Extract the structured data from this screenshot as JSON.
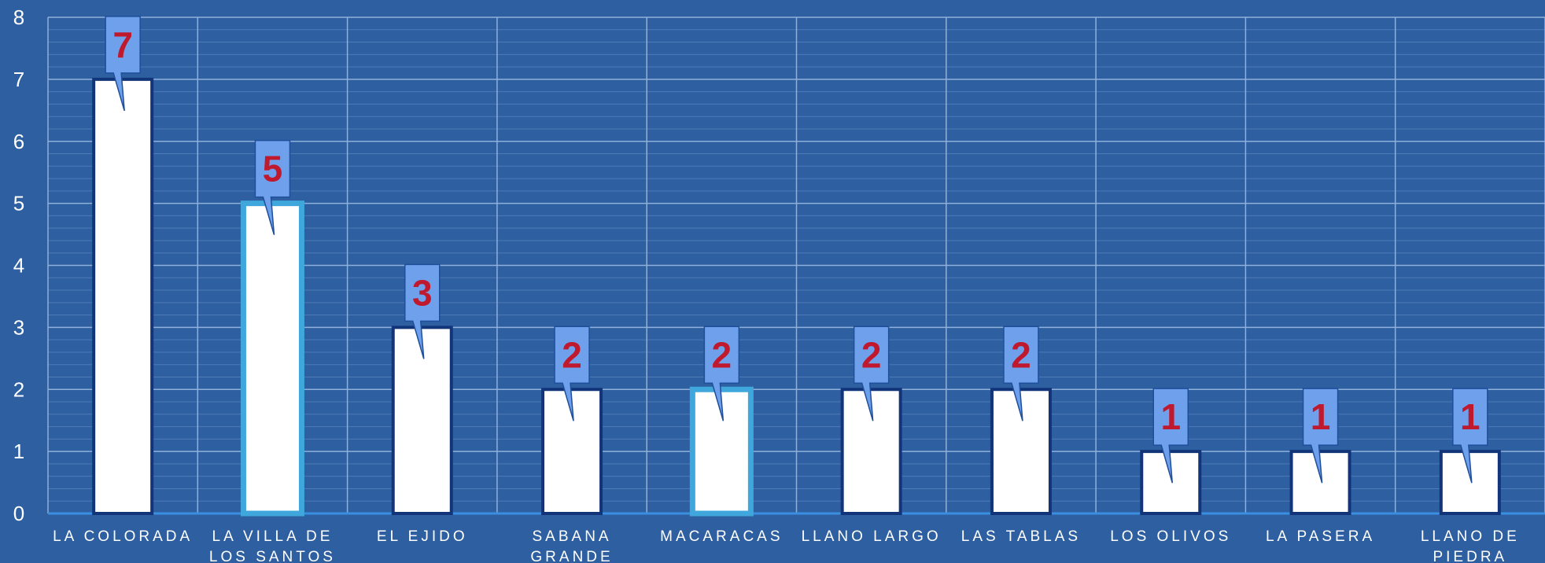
{
  "chart_data": {
    "type": "bar",
    "title": "",
    "xlabel": "",
    "ylabel": "",
    "categories": [
      "LA COLORADA",
      "LA VILLA DE LOS SANTOS",
      "EL EJIDO",
      "SABANA GRANDE",
      "MACARACAS",
      "LLANO LARGO",
      "LAS TABLAS",
      "LOS OLIVOS",
      "LA PASERA",
      "LLANO DE PIEDRA"
    ],
    "category_lines": [
      [
        "LA COLORADA"
      ],
      [
        "LA VILLA DE",
        "LOS SANTOS"
      ],
      [
        "EL EJIDO"
      ],
      [
        "SABANA",
        "GRANDE"
      ],
      [
        "MACARACAS"
      ],
      [
        "LLANO LARGO"
      ],
      [
        "LAS TABLAS"
      ],
      [
        "LOS OLIVOS"
      ],
      [
        "LA PASERA"
      ],
      [
        "LLANO DE",
        "PIEDRA"
      ]
    ],
    "values": [
      7,
      5,
      3,
      2,
      2,
      2,
      2,
      1,
      1,
      1
    ],
    "ylim": [
      0,
      8
    ],
    "yticks": [
      0,
      1,
      2,
      3,
      4,
      5,
      6,
      7,
      8
    ],
    "grid": true,
    "highlighted_categories": [
      "LA VILLA DE LOS SANTOS",
      "MACARACAS"
    ],
    "colors": {
      "background": "#2e5fa0",
      "bar_fill": "#ffffff",
      "bar_border": "#12357a",
      "bar_highlight_border": "#3fa7dc",
      "callout_fill": "#6fa0ec",
      "callout_border": "#1f4f9a",
      "data_label": "#c0182c",
      "grid_major": "#8fb0da",
      "grid_minor": "#4f7bb7",
      "axis_line": "#3a8fe0"
    }
  }
}
